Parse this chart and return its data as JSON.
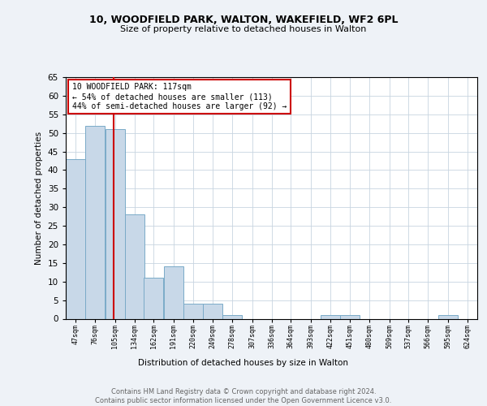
{
  "title1": "10, WOODFIELD PARK, WALTON, WAKEFIELD, WF2 6PL",
  "title2": "Size of property relative to detached houses in Walton",
  "xlabel": "Distribution of detached houses by size in Walton",
  "ylabel": "Number of detached properties",
  "bar_edges": [
    47,
    76,
    105,
    134,
    162,
    191,
    220,
    249,
    278,
    307,
    336,
    364,
    393,
    422,
    451,
    480,
    509,
    537,
    566,
    595,
    624
  ],
  "bar_heights": [
    43,
    52,
    51,
    28,
    11,
    14,
    4,
    4,
    1,
    0,
    0,
    0,
    0,
    1,
    1,
    0,
    0,
    0,
    0,
    1
  ],
  "bar_color": "#c8d8e8",
  "bar_edge_color": "#7aaac8",
  "property_size": 117,
  "vline_color": "#cc0000",
  "annotation_text": "10 WOODFIELD PARK: 117sqm\n← 54% of detached houses are smaller (113)\n44% of semi-detached houses are larger (92) →",
  "annotation_box_color": "#cc0000",
  "ylim": [
    0,
    65
  ],
  "yticks": [
    0,
    5,
    10,
    15,
    20,
    25,
    30,
    35,
    40,
    45,
    50,
    55,
    60,
    65
  ],
  "tick_labels": [
    "47sqm",
    "76sqm",
    "105sqm",
    "134sqm",
    "162sqm",
    "191sqm",
    "220sqm",
    "249sqm",
    "278sqm",
    "307sqm",
    "336sqm",
    "364sqm",
    "393sqm",
    "422sqm",
    "451sqm",
    "480sqm",
    "509sqm",
    "537sqm",
    "566sqm",
    "595sqm",
    "624sqm"
  ],
  "footer_text": "Contains HM Land Registry data © Crown copyright and database right 2024.\nContains public sector information licensed under the Open Government Licence v3.0.",
  "bg_color": "#eef2f7",
  "plot_bg_color": "#ffffff"
}
